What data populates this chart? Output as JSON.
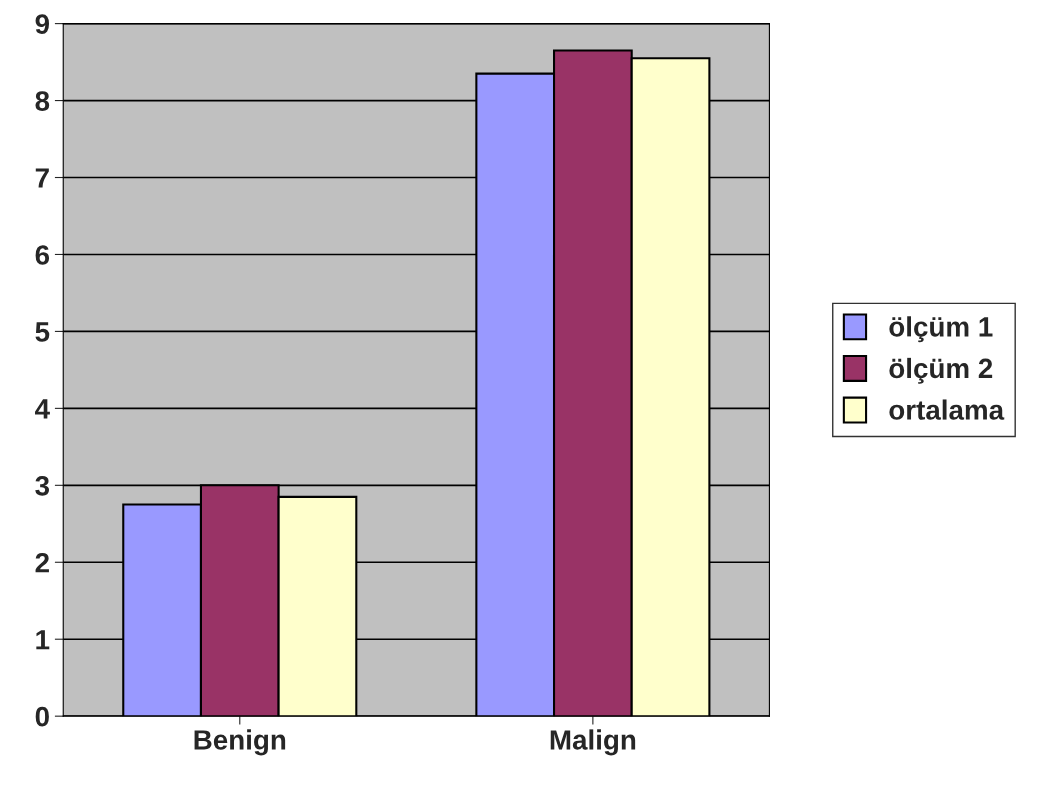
{
  "chart_data": {
    "type": "bar",
    "categories": [
      "Benign",
      "Malign"
    ],
    "series": [
      {
        "name": "ölçüm 1",
        "color": "#9999ff",
        "values": [
          2.75,
          8.35
        ]
      },
      {
        "name": "ölçüm 2",
        "color": "#993366",
        "values": [
          3.0,
          8.65
        ]
      },
      {
        "name": "ortalama",
        "color": "#ffffcc",
        "values": [
          2.85,
          8.55
        ]
      }
    ],
    "ylim": [
      0,
      9
    ],
    "yticks": [
      0,
      1,
      2,
      3,
      4,
      5,
      6,
      7,
      8,
      9
    ],
    "grid": "y",
    "legend": "right"
  }
}
